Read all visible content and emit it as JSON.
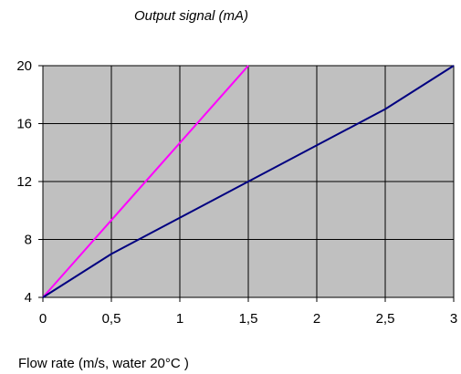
{
  "chart_data": {
    "type": "line",
    "ylabel": "Output signal (mA)",
    "xlabel": "Flow rate (m/s, water 20°C )",
    "xlim": [
      0,
      3
    ],
    "ylim": [
      4,
      20
    ],
    "x_ticks": [
      0,
      0.5,
      1,
      1.5,
      2,
      2.5,
      3
    ],
    "x_tick_labels": [
      "0",
      "0,5",
      "1",
      "1,5",
      "2",
      "2,5",
      "3"
    ],
    "y_ticks": [
      4,
      8,
      12,
      16,
      20
    ],
    "y_tick_labels": [
      "4",
      "8",
      "12",
      "16",
      "20"
    ],
    "grid": true,
    "legend": "none",
    "plot_background": "#c0c0c0",
    "series": [
      {
        "color": "#ff00ff",
        "points": [
          [
            0,
            4
          ],
          [
            1.5,
            20
          ]
        ]
      },
      {
        "color": "#000080",
        "points": [
          [
            0,
            4
          ],
          [
            0.5,
            7
          ],
          [
            1.5,
            12
          ],
          [
            2.5,
            17
          ],
          [
            3,
            20
          ]
        ]
      }
    ]
  }
}
